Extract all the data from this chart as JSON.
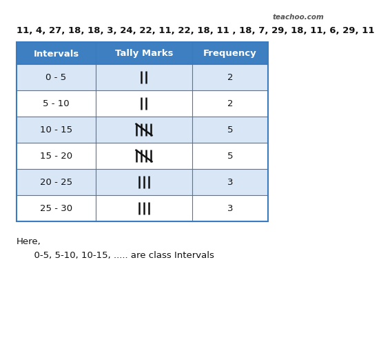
{
  "title_line": "11, 4, 27, 18, 18, 3, 24, 22, 11, 22, 18, 11 , 18, 7, 29, 18, 11, 6, 29, 11",
  "watermark": "teachoo.com",
  "headers": [
    "Intervals",
    "Tally Marks",
    "Frequency"
  ],
  "intervals": [
    "0 - 5",
    "5 - 10",
    "10 - 15",
    "15 - 20",
    "20 - 25",
    "25 - 30"
  ],
  "frequencies": [
    "2",
    "2",
    "5",
    "5",
    "3",
    "3"
  ],
  "footer_line1": "Here,",
  "footer_line2": "      0-5, 5-10, 10-15, ..... are class Intervals",
  "header_bg": "#3d7fc1",
  "header_text": "#ffffff",
  "row_bg_even": "#d9e6f5",
  "row_bg_odd": "#ffffff",
  "border_color": "#3a7ac0",
  "bg_color": "#ffffff",
  "title_fontsize": 9.5,
  "header_fontsize": 9.5,
  "cell_fontsize": 9.5,
  "watermark_fontsize": 7.5
}
